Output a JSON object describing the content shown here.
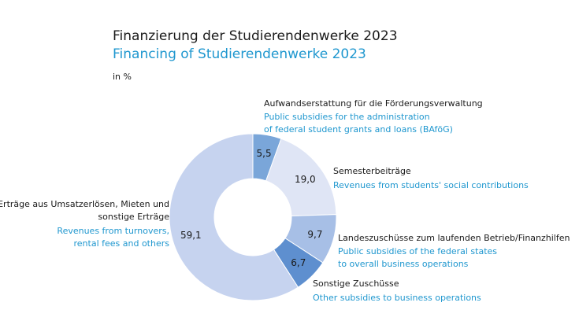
{
  "title_de": "Finanzierung der Studierendenwerke 2023",
  "title_en": "Financing of Studierendenwerke 2023",
  "unit": "in %",
  "chart_data": {
    "type": "pie",
    "title": "Finanzierung der Studierendenwerke 2023",
    "subtitle": "Financing of Studierendenwerke 2023",
    "unit": "in %",
    "categories": [
      "Aufwandserstattung für die Förderungsverwaltung",
      "Semesterbeiträge",
      "Landeszuschüsse zum laufenden Betrieb/Finanzhilfen",
      "Sonstige Zuschüsse",
      "Erträge aus Umsatzerlösen, Mieten und sonstige Erträge"
    ],
    "values": [
      5.5,
      19.0,
      9.7,
      6.7,
      59.1
    ],
    "value_labels": [
      "5,5",
      "19,0",
      "9,7",
      "6,7",
      "59,1"
    ],
    "colors": [
      "#7aa6d9",
      "#dfe5f5",
      "#a7bfe6",
      "#5e8fcf",
      "#c6d3ef"
    ],
    "slices": [
      {
        "label_de": "Aufwandserstattung für die Förderungsverwaltung",
        "label_en": [
          "Public subsidies for the administration",
          "of federal student grants and loans (BAföG)"
        ]
      },
      {
        "label_de": "Semesterbeiträge",
        "label_en": [
          "Revenues from students' social contributions"
        ]
      },
      {
        "label_de": "Landeszuschüsse zum laufenden Betrieb/Finanzhilfen",
        "label_en": [
          "Public subsidies of the federal states",
          "to overall business operations"
        ]
      },
      {
        "label_de": "Sonstige Zuschüsse",
        "label_en": [
          "Other subsidies to business operations"
        ]
      },
      {
        "label_de": [
          "Erträge aus Umsatzerlösen, Mieten und",
          "sonstige Erträge"
        ],
        "label_en": [
          "Revenues from turnovers,",
          "rental fees and others"
        ]
      }
    ]
  }
}
